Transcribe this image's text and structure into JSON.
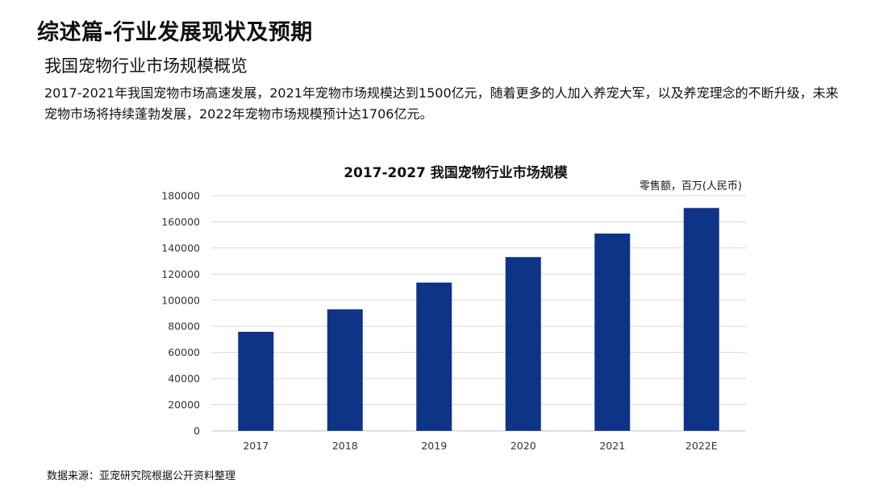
{
  "page": {
    "title": "综述篇-行业发展现状及预期",
    "section_title": "我国宠物行业市场规模概览",
    "intro_text": "2017-2021年我国宠物市场高速发展，2021年宠物市场规模达到1500亿元，随着更多的人加入养宠大军，以及养宠理念的不断升级，未来宠物市场将持续蓬勃发展，2022年宠物市场规模预计达1706亿元。",
    "source": "数据来源：亚宠研究院根据公开资料整理"
  },
  "chart_data": {
    "type": "bar",
    "title": "2017-2027 我国宠物行业市场规模",
    "unit_label": "零售额，百万(人民币)",
    "categories": [
      "2017",
      "2018",
      "2019",
      "2020",
      "2021",
      "2022E"
    ],
    "values": [
      75800,
      93000,
      113500,
      133000,
      151000,
      170600
    ],
    "ylim": [
      0,
      180000
    ],
    "yticks": [
      "0",
      "20000",
      "40000",
      "60000",
      "80000",
      "100000",
      "120000",
      "140000",
      "160000",
      "180000"
    ],
    "grid": true,
    "bar_color": "#0e3488",
    "grid_color": "#d9d9d9"
  }
}
